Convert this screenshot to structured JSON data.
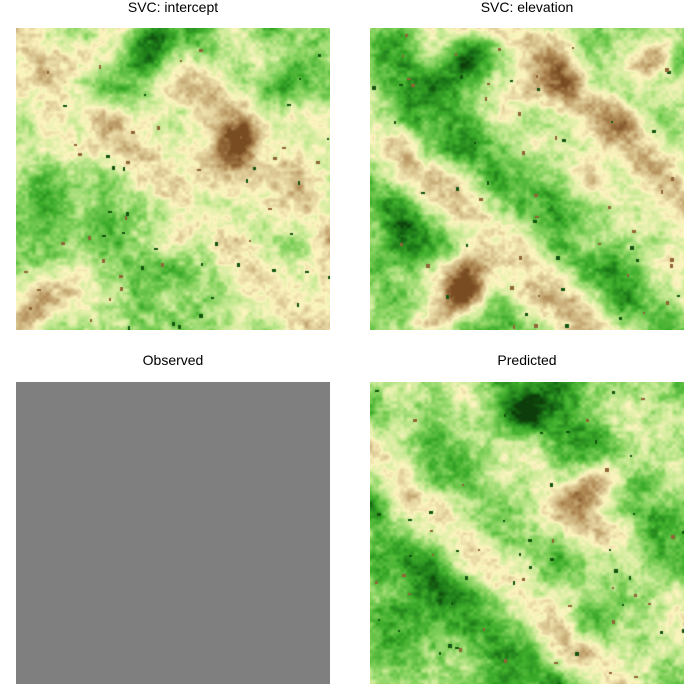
{
  "chart_data": [
    {
      "type": "heatmap",
      "title": "SVC: intercept",
      "colormap": [
        "#7a4c22",
        "#b08a55",
        "#d8c38f",
        "#fdf5c0",
        "#c8ea95",
        "#7fd05a",
        "#3fae2c",
        "#1c7a18",
        "#0c3d0a"
      ],
      "pattern": "diagonal bands of green with a brown ridge near the upper center and a tan region at the lower left",
      "stripes": [
        {
          "offset": -0.45,
          "value": 0.62,
          "width": 0.1
        },
        {
          "offset": -0.25,
          "value": 0.55,
          "width": 0.08
        },
        {
          "offset": -0.05,
          "value": 0.28,
          "width": 0.1
        },
        {
          "offset": 0.18,
          "value": 0.48,
          "width": 0.08
        },
        {
          "offset": 0.4,
          "value": 0.3,
          "width": 0.12
        },
        {
          "offset": 0.65,
          "value": 0.52,
          "width": 0.09
        }
      ],
      "blobs": [
        {
          "x": 0.7,
          "y": 0.38,
          "r": 0.12,
          "value": 0.05
        },
        {
          "x": 0.06,
          "y": 0.92,
          "r": 0.14,
          "value": 0.15
        },
        {
          "x": 0.88,
          "y": 0.15,
          "r": 0.1,
          "value": 0.75
        },
        {
          "x": 0.45,
          "y": 0.05,
          "r": 0.15,
          "value": 0.92
        }
      ],
      "base": 0.6
    },
    {
      "type": "heatmap",
      "title": "SVC: elevation",
      "colormap": [
        "#7a4c22",
        "#b08a55",
        "#d8c38f",
        "#fdf5c0",
        "#c8ea95",
        "#7fd05a",
        "#3fae2c",
        "#1c7a18",
        "#0c3d0a"
      ],
      "pattern": "darker green at the top, alternating light and dark diagonal bands, brown ridge along the lower left diagonal",
      "stripes": [
        {
          "offset": -0.55,
          "value": 0.82,
          "width": 0.1
        },
        {
          "offset": -0.3,
          "value": 0.32,
          "width": 0.09
        },
        {
          "offset": -0.05,
          "value": 0.7,
          "width": 0.1
        },
        {
          "offset": 0.2,
          "value": 0.4,
          "width": 0.08
        },
        {
          "offset": 0.45,
          "value": 0.12,
          "width": 0.1
        },
        {
          "offset": 0.7,
          "value": 0.55,
          "width": 0.1
        }
      ],
      "blobs": [
        {
          "x": 0.3,
          "y": 0.85,
          "r": 0.16,
          "value": 0.05
        },
        {
          "x": 0.9,
          "y": 0.1,
          "r": 0.08,
          "value": 0.25
        },
        {
          "x": 0.3,
          "y": 0.12,
          "r": 0.14,
          "value": 0.85
        }
      ],
      "base": 0.6
    },
    {
      "type": "heatmap",
      "title": "Observed",
      "uniform_color": "#7f7f7f"
    },
    {
      "type": "heatmap",
      "title": "Predicted",
      "colormap": [
        "#7a4c22",
        "#b08a55",
        "#d8c38f",
        "#fdf5c0",
        "#c8ea95",
        "#7fd05a",
        "#3fae2c",
        "#1c7a18",
        "#0c3d0a"
      ],
      "pattern": "darker green at the top, brown ridge near the upper center-right, darker lower left",
      "stripes": [
        {
          "offset": -0.45,
          "value": 0.78,
          "width": 0.1
        },
        {
          "offset": -0.22,
          "value": 0.35,
          "width": 0.08
        },
        {
          "offset": 0.0,
          "value": 0.62,
          "width": 0.1
        },
        {
          "offset": 0.25,
          "value": 0.4,
          "width": 0.09
        },
        {
          "offset": 0.5,
          "value": 0.75,
          "width": 0.1
        },
        {
          "offset": 0.72,
          "value": 0.45,
          "width": 0.1
        }
      ],
      "blobs": [
        {
          "x": 0.68,
          "y": 0.38,
          "r": 0.12,
          "value": 0.05
        },
        {
          "x": 0.5,
          "y": 0.08,
          "r": 0.14,
          "value": 0.92
        },
        {
          "x": 0.1,
          "y": 0.75,
          "r": 0.13,
          "value": 0.85
        },
        {
          "x": 0.9,
          "y": 0.9,
          "r": 0.08,
          "value": 0.35
        }
      ],
      "base": 0.62
    }
  ]
}
